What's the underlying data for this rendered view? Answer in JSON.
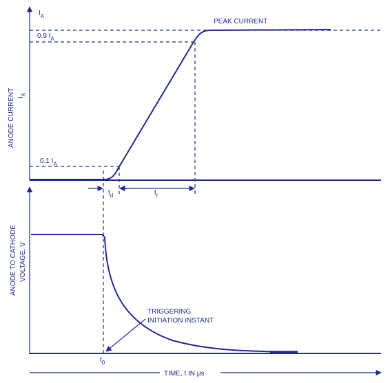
{
  "diagram": {
    "current_axis": {
      "ia_top": "I",
      "ia_top_sub": "A",
      "ia_90": "0.9 I",
      "ia_90_sub": "A",
      "ia_10": "0.1 I",
      "ia_10_sub": "A",
      "y_label": "ANODE CURRENT",
      "y_symbol": "I",
      "y_symbol_sub": "A",
      "peak_label": "PEAK CURRENT"
    },
    "intervals": {
      "td": "t",
      "td_sub": "d",
      "tr": "t",
      "tr_sub": "r"
    },
    "voltage_axis": {
      "y_label_line1": "ANODE TO CATHODE",
      "y_label_line2": "VOLTAGE, V"
    },
    "trigger": {
      "line1": "TRIGGERING",
      "line2": "INITIATION INSTANT",
      "t0": "t",
      "t0_sub": "0"
    },
    "x_axis": {
      "label": "TIME, t IN μs"
    },
    "colors": {
      "ink": "#1f2a8f",
      "background": "#ffffff"
    }
  }
}
